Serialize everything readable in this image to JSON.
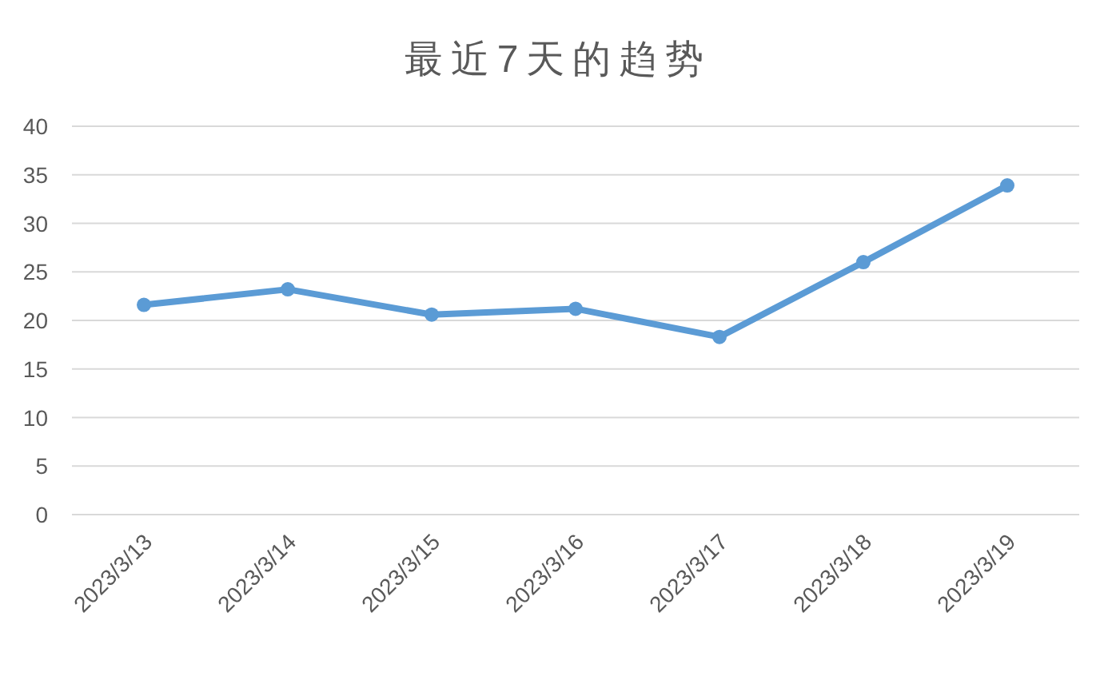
{
  "chart_data": {
    "type": "line",
    "title": "最近7天的趋势",
    "categories": [
      "2023/3/13",
      "2023/3/14",
      "2023/3/15",
      "2023/3/16",
      "2023/3/17",
      "2023/3/18",
      "2023/3/19"
    ],
    "series": [
      {
        "color": "#5b9bd5",
        "values": [
          21.6,
          23.2,
          20.6,
          21.2,
          18.3,
          26.0,
          33.9
        ]
      }
    ],
    "ylim": [
      0,
      40
    ],
    "yticks": [
      0,
      5,
      10,
      15,
      20,
      25,
      30,
      35,
      40
    ],
    "grid": "y",
    "marker": "circle",
    "line_style": "solid"
  }
}
